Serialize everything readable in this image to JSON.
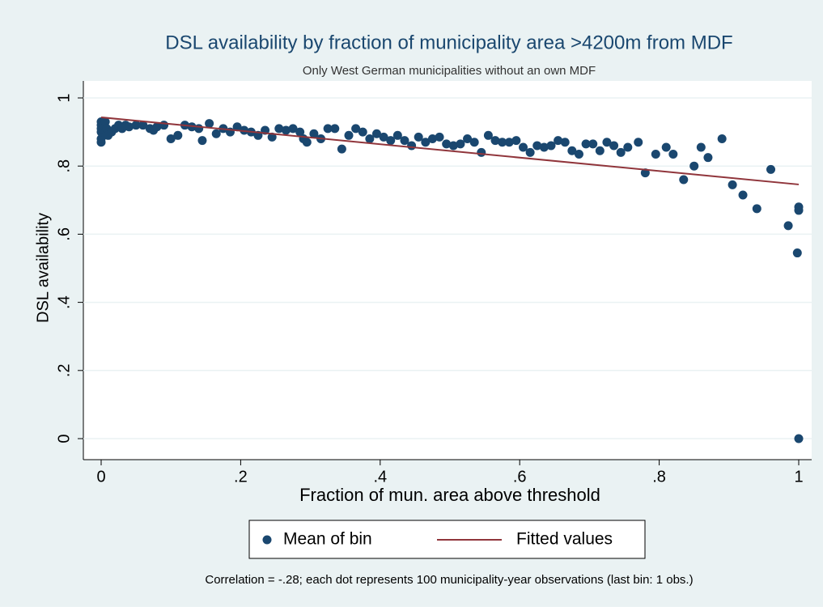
{
  "chart_data": {
    "type": "scatter",
    "title": "DSL availability by fraction of municipality area >4200m from MDF",
    "subtitle": "Only West German municipalities without an own MDF",
    "xlabel": "Fraction of mun. area above threshold",
    "ylabel": "DSL availability",
    "note": "Correlation = -.28; each dot represents 100 municipality-year observations (last bin: 1 obs.)",
    "xlim": [
      0,
      1
    ],
    "ylim": [
      0,
      1
    ],
    "xticks": [
      0,
      {
        "value": 0.2,
        "label": ".2"
      },
      {
        "value": 0.4,
        "label": ".4"
      },
      {
        "value": 0.6,
        "label": ".6"
      },
      {
        "value": 0.8,
        "label": ".8"
      },
      1
    ],
    "yticks": [
      0,
      {
        "value": 0.2,
        "label": ".2"
      },
      {
        "value": 0.4,
        "label": ".4"
      },
      {
        "value": 0.6,
        "label": ".6"
      },
      {
        "value": 0.8,
        "label": ".8"
      },
      1
    ],
    "grid": true,
    "legend": "bottom",
    "series": [
      {
        "name": "Mean of bin",
        "color": "#1a476f",
        "kind": "scatter",
        "x": [
          0,
          0,
          0,
          0,
          0,
          0,
          0.002,
          0.004,
          0.006,
          0.008,
          0.01,
          0.015,
          0.02,
          0.025,
          0.03,
          0.035,
          0.04,
          0.05,
          0.06,
          0.07,
          0.075,
          0.08,
          0.09,
          0.1,
          0.11,
          0.12,
          0.13,
          0.14,
          0.145,
          0.155,
          0.165,
          0.175,
          0.185,
          0.195,
          0.205,
          0.215,
          0.225,
          0.235,
          0.245,
          0.255,
          0.265,
          0.275,
          0.285,
          0.29,
          0.295,
          0.305,
          0.315,
          0.325,
          0.335,
          0.345,
          0.355,
          0.365,
          0.375,
          0.385,
          0.395,
          0.405,
          0.415,
          0.425,
          0.435,
          0.445,
          0.455,
          0.465,
          0.475,
          0.485,
          0.495,
          0.505,
          0.515,
          0.525,
          0.535,
          0.545,
          0.555,
          0.565,
          0.575,
          0.585,
          0.595,
          0.605,
          0.615,
          0.625,
          0.635,
          0.645,
          0.655,
          0.665,
          0.675,
          0.685,
          0.695,
          0.705,
          0.715,
          0.725,
          0.735,
          0.745,
          0.755,
          0.77,
          0.78,
          0.795,
          0.81,
          0.82,
          0.835,
          0.85,
          0.86,
          0.87,
          0.89,
          0.905,
          0.92,
          0.94,
          0.96,
          0.985,
          0.998,
          1,
          1,
          1
        ],
        "values": [
          0.87,
          0.88,
          0.9,
          0.91,
          0.92,
          0.93,
          0.925,
          0.92,
          0.93,
          0.91,
          0.89,
          0.9,
          0.91,
          0.92,
          0.91,
          0.92,
          0.915,
          0.92,
          0.92,
          0.91,
          0.905,
          0.915,
          0.92,
          0.88,
          0.89,
          0.92,
          0.915,
          0.91,
          0.875,
          0.925,
          0.895,
          0.91,
          0.9,
          0.915,
          0.905,
          0.9,
          0.89,
          0.905,
          0.885,
          0.91,
          0.905,
          0.91,
          0.9,
          0.88,
          0.87,
          0.895,
          0.88,
          0.91,
          0.91,
          0.85,
          0.89,
          0.91,
          0.9,
          0.88,
          0.895,
          0.885,
          0.875,
          0.89,
          0.875,
          0.86,
          0.885,
          0.87,
          0.88,
          0.885,
          0.865,
          0.86,
          0.865,
          0.88,
          0.87,
          0.84,
          0.89,
          0.875,
          0.87,
          0.87,
          0.875,
          0.855,
          0.84,
          0.86,
          0.855,
          0.86,
          0.875,
          0.87,
          0.845,
          0.835,
          0.865,
          0.865,
          0.845,
          0.87,
          0.86,
          0.84,
          0.855,
          0.87,
          0.78,
          0.835,
          0.855,
          0.835,
          0.76,
          0.8,
          0.855,
          0.825,
          0.88,
          0.745,
          0.715,
          0.675,
          0.79,
          0.625,
          0.545,
          0.67,
          0.68,
          0
        ]
      },
      {
        "name": "Fitted values",
        "color": "#90353b",
        "kind": "line",
        "x": [
          0,
          1
        ],
        "values": [
          0.943,
          0.746
        ]
      }
    ]
  }
}
